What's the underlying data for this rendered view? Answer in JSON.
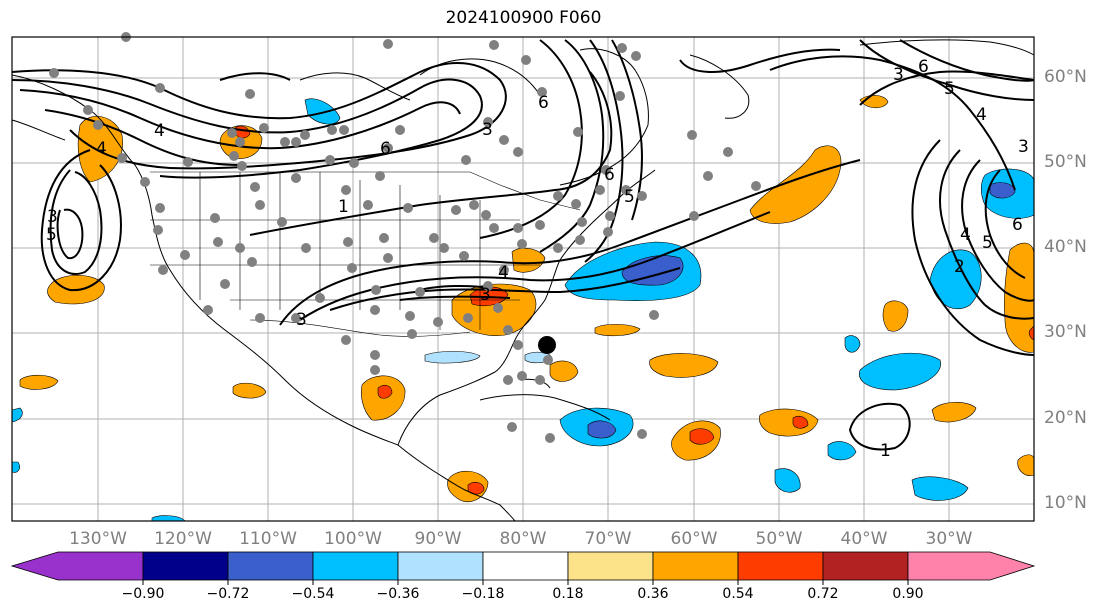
{
  "title": "2024100900 F060",
  "lat_labels": [
    "60°N",
    "50°N",
    "40°N",
    "30°N",
    "20°N",
    "10°N"
  ],
  "lon_labels": [
    "130°W",
    "120°W",
    "110°W",
    "100°W",
    "90°W",
    "80°W",
    "70°W",
    "60°W",
    "50°W",
    "40°W",
    "30°W"
  ],
  "contour_labels": [
    "5",
    "3",
    "4",
    "4",
    "6",
    "3",
    "6",
    "5",
    "4",
    "3",
    "6",
    "5",
    "6",
    "4",
    "3",
    "1",
    "3",
    "2",
    "6",
    "5",
    "4",
    "3",
    "1"
  ],
  "colorbar": {
    "ticks": [
      "−0.90",
      "−0.72",
      "−0.54",
      "−0.36",
      "−0.18",
      "0.18",
      "0.36",
      "0.54",
      "0.72",
      "0.90"
    ],
    "colors": [
      "#9932cc",
      "#00008b",
      "#3a5fcd",
      "#00bfff",
      "#b0e2ff",
      "#ffffff",
      "#fce38a",
      "#ffa500",
      "#ff3c00",
      "#b22222",
      "#ff82ab"
    ]
  }
}
